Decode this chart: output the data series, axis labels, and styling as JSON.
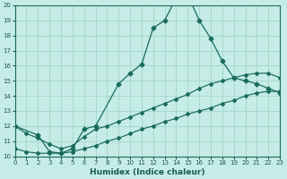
{
  "xlabel": "Humidex (Indice chaleur)",
  "background_color": "#c5ece6",
  "grid_color": "#a8d8d0",
  "line_color": "#1a6b5a",
  "xlim": [
    0,
    23
  ],
  "ylim": [
    10,
    20
  ],
  "yticks": [
    10,
    11,
    12,
    13,
    14,
    15,
    16,
    17,
    18,
    19,
    20
  ],
  "xticks": [
    0,
    1,
    2,
    3,
    4,
    5,
    6,
    7,
    8,
    9,
    10,
    11,
    12,
    13,
    14,
    15,
    16,
    17,
    18,
    19,
    20,
    21,
    22,
    23
  ],
  "series1_x": [
    0,
    2,
    3,
    4,
    5,
    6,
    7,
    9,
    10,
    11,
    12,
    13,
    14,
    15,
    16,
    17,
    18,
    19,
    20,
    21,
    22,
    23
  ],
  "series1_y": [
    12.0,
    11.4,
    10.3,
    10.2,
    10.5,
    11.8,
    12.0,
    14.8,
    15.5,
    16.1,
    18.5,
    19.0,
    20.5,
    20.7,
    19.0,
    17.8,
    16.3,
    15.2,
    15.0,
    14.8,
    14.5,
    14.2
  ],
  "series2_x": [
    0,
    1,
    2,
    3,
    4,
    5,
    6,
    7,
    8,
    9,
    10,
    11,
    12,
    13,
    14,
    15,
    16,
    17,
    18,
    19,
    20,
    21,
    22,
    23
  ],
  "series2_y": [
    12.0,
    11.5,
    11.2,
    10.8,
    10.5,
    10.7,
    11.3,
    11.8,
    12.0,
    12.3,
    12.6,
    12.9,
    13.2,
    13.5,
    13.8,
    14.1,
    14.5,
    14.8,
    15.0,
    15.2,
    15.4,
    15.5,
    15.5,
    15.2
  ],
  "series3_x": [
    0,
    1,
    2,
    3,
    4,
    5,
    6,
    7,
    8,
    9,
    10,
    11,
    12,
    13,
    14,
    15,
    16,
    17,
    18,
    19,
    20,
    21,
    22,
    23
  ],
  "series3_y": [
    10.5,
    10.3,
    10.2,
    10.2,
    10.2,
    10.3,
    10.5,
    10.7,
    11.0,
    11.2,
    11.5,
    11.8,
    12.0,
    12.3,
    12.5,
    12.8,
    13.0,
    13.2,
    13.5,
    13.7,
    14.0,
    14.2,
    14.3,
    14.3
  ]
}
